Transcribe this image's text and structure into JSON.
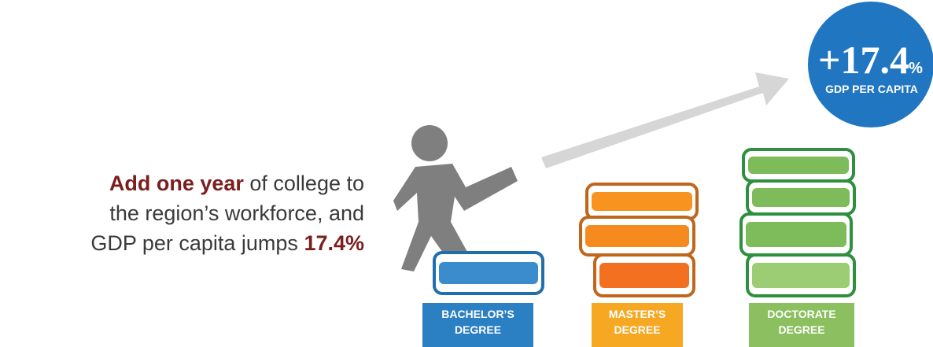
{
  "statement": {
    "lines": [
      [
        {
          "text": "Add one year",
          "bold": true
        },
        {
          "text": " of college to",
          "bold": false
        }
      ],
      [
        {
          "text": "the region’s workforce, and",
          "bold": false
        }
      ],
      [
        {
          "text": "GDP per capita jumps ",
          "bold": false
        },
        {
          "text": "17.4%",
          "bold": true
        }
      ]
    ]
  },
  "badge": {
    "value": "+17.4",
    "unit": "%",
    "caption": "GDP PER CAPITA"
  },
  "degrees": [
    {
      "label_lines": [
        "BACHELOR’S",
        "DEGREE"
      ],
      "color": "#2b7fc3"
    },
    {
      "label_lines": [
        "MASTER’S",
        "DEGREE"
      ],
      "color": "#f7a823"
    },
    {
      "label_lines": [
        "DOCTORATE",
        "DEGREE"
      ],
      "color": "#8cbf5f"
    }
  ]
}
